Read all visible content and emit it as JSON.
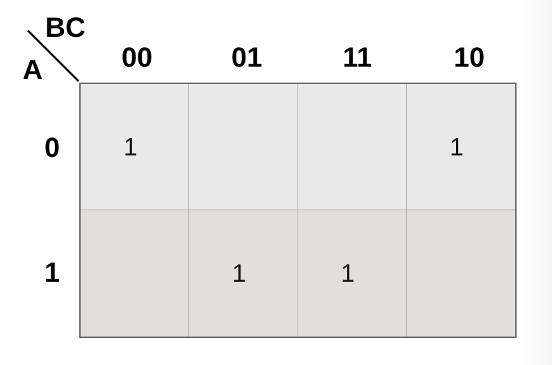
{
  "row_variable": "A",
  "column_variable": "BC",
  "column_headers": [
    "00",
    "01",
    "11",
    "10"
  ],
  "row_headers": [
    "0",
    "1"
  ],
  "cells": [
    [
      "1",
      "",
      "",
      "1"
    ],
    [
      "",
      "1",
      "1",
      ""
    ]
  ],
  "colors": {
    "row0_fill": "#e9e9e9",
    "row1_fill": "#e0dfdb",
    "border": "#666666",
    "gridline": "#aaaaaa"
  }
}
